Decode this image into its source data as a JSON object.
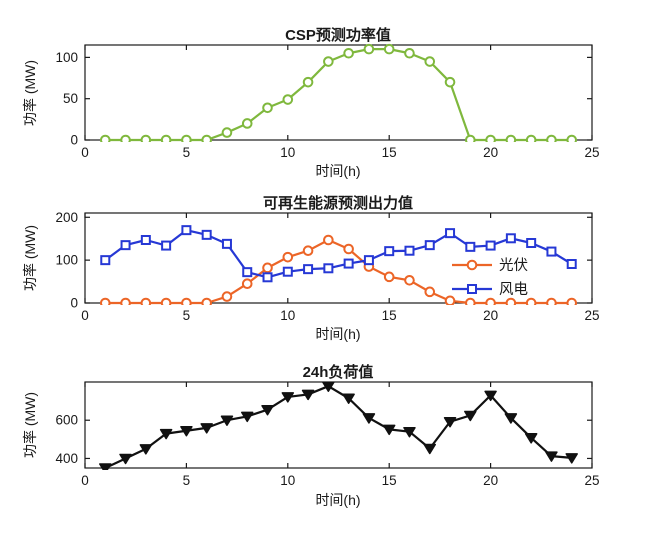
{
  "figure": {
    "background": "#ffffff",
    "axis_color": "#1a1a1a"
  },
  "chart_data": [
    {
      "type": "line",
      "title": "CSP预测功率值",
      "xlabel": "时间(h)",
      "ylabel": "功率 (MW)",
      "xlim": [
        0,
        25
      ],
      "ylim": [
        0,
        115
      ],
      "xticks": [
        0,
        5,
        10,
        15,
        20,
        25
      ],
      "yticks": [
        0,
        50,
        100
      ],
      "grid": false,
      "legend": null,
      "x": [
        1,
        2,
        3,
        4,
        5,
        6,
        7,
        8,
        9,
        10,
        11,
        12,
        13,
        14,
        15,
        16,
        17,
        18,
        19,
        20,
        21,
        22,
        23,
        24
      ],
      "series": [
        {
          "id": "csp",
          "name": "CSP",
          "color": "#7fb83d",
          "marker": "circle",
          "values": [
            0,
            0,
            0,
            0,
            0,
            0,
            9,
            20,
            39,
            49,
            70,
            95,
            105,
            110,
            110,
            105,
            95,
            70,
            0,
            0,
            0,
            0,
            0,
            0
          ]
        }
      ]
    },
    {
      "type": "line",
      "title": "可再生能源预测出力值",
      "xlabel": "时间(h)",
      "ylabel": "功率 (MW)",
      "xlim": [
        0,
        25
      ],
      "ylim": [
        0,
        210
      ],
      "xticks": [
        0,
        5,
        10,
        15,
        20,
        25
      ],
      "yticks": [
        0,
        100,
        200
      ],
      "grid": false,
      "legend": {
        "position": "right-center",
        "entries": [
          "光伏",
          "风电"
        ]
      },
      "x": [
        1,
        2,
        3,
        4,
        5,
        6,
        7,
        8,
        9,
        10,
        11,
        12,
        13,
        14,
        15,
        16,
        17,
        18,
        19,
        20,
        21,
        22,
        23,
        24
      ],
      "series": [
        {
          "id": "pv",
          "name": "光伏",
          "color": "#ec6527",
          "marker": "circle",
          "values": [
            0,
            0,
            0,
            0,
            0,
            0,
            15,
            45,
            82,
            107,
            122,
            147,
            126,
            85,
            61,
            53,
            26,
            5,
            0,
            0,
            0,
            0,
            0,
            0
          ]
        },
        {
          "id": "wind",
          "name": "风电",
          "color": "#2638d5",
          "marker": "square",
          "values": [
            100,
            135,
            147,
            134,
            170,
            159,
            138,
            72,
            60,
            73,
            79,
            81,
            92,
            100,
            121,
            122,
            135,
            163,
            131,
            134,
            151,
            140,
            120,
            91
          ]
        }
      ]
    },
    {
      "type": "line",
      "title": "24h负荷值",
      "xlabel": "时间(h)",
      "ylabel": "功率 (MW)",
      "xlim": [
        0,
        25
      ],
      "ylim": [
        350,
        800
      ],
      "xticks": [
        0,
        5,
        10,
        15,
        20,
        25
      ],
      "yticks": [
        400,
        600
      ],
      "grid": false,
      "legend": null,
      "x": [
        1,
        2,
        3,
        4,
        5,
        6,
        7,
        8,
        9,
        10,
        11,
        12,
        13,
        14,
        15,
        16,
        17,
        18,
        19,
        20,
        21,
        22,
        23,
        24
      ],
      "series": [
        {
          "id": "load",
          "name": "负荷",
          "color": "#111111",
          "marker": "triangle-down",
          "values": [
            350,
            400,
            450,
            530,
            545,
            560,
            600,
            620,
            655,
            722,
            735,
            778,
            715,
            612,
            552,
            540,
            452,
            592,
            625,
            730,
            612,
            508,
            412,
            403
          ]
        }
      ]
    }
  ]
}
